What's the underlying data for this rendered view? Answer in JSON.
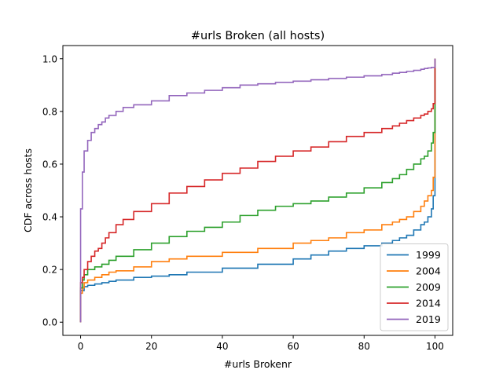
{
  "chart_data": {
    "type": "line",
    "step": true,
    "title": "#urls Broken (all hosts)",
    "xlabel": "#urls Brokenr",
    "ylabel": "CDF across hosts",
    "xlim": [
      -5,
      105
    ],
    "ylim": [
      -0.05,
      1.05
    ],
    "xticks": [
      0,
      20,
      40,
      60,
      80,
      100
    ],
    "yticks": [
      0.0,
      0.2,
      0.4,
      0.6,
      0.8,
      1.0
    ],
    "xtick_labels": [
      "0",
      "20",
      "40",
      "60",
      "80",
      "100"
    ],
    "ytick_labels": [
      "0.0",
      "0.2",
      "0.4",
      "0.6",
      "0.8",
      "1.0"
    ],
    "grid": false,
    "legend": "lower-right",
    "series": [
      {
        "name": "1999",
        "color": "#1f77b4",
        "x": [
          0,
          0,
          1,
          2,
          4,
          6,
          8,
          10,
          15,
          20,
          25,
          30,
          40,
          50,
          60,
          65,
          70,
          75,
          80,
          85,
          88,
          90,
          92,
          94,
          96,
          97,
          98,
          99,
          99.5,
          100,
          100
        ],
        "y": [
          0.0,
          0.12,
          0.135,
          0.14,
          0.145,
          0.15,
          0.155,
          0.16,
          0.17,
          0.175,
          0.18,
          0.19,
          0.205,
          0.22,
          0.24,
          0.255,
          0.27,
          0.28,
          0.29,
          0.3,
          0.31,
          0.32,
          0.33,
          0.35,
          0.37,
          0.38,
          0.4,
          0.43,
          0.48,
          0.5,
          1.0
        ]
      },
      {
        "name": "2004",
        "color": "#ff7f0e",
        "x": [
          0,
          0,
          0.5,
          1,
          2,
          4,
          6,
          8,
          10,
          15,
          20,
          25,
          30,
          40,
          50,
          60,
          65,
          70,
          75,
          80,
          85,
          88,
          90,
          92,
          94,
          96,
          97,
          98,
          99,
          99.5,
          100,
          100
        ],
        "y": [
          0.0,
          0.11,
          0.13,
          0.15,
          0.16,
          0.17,
          0.18,
          0.19,
          0.195,
          0.21,
          0.23,
          0.24,
          0.25,
          0.265,
          0.28,
          0.3,
          0.31,
          0.32,
          0.34,
          0.35,
          0.37,
          0.38,
          0.39,
          0.4,
          0.42,
          0.44,
          0.46,
          0.48,
          0.5,
          0.55,
          0.68,
          1.0
        ]
      },
      {
        "name": "2009",
        "color": "#2ca02c",
        "x": [
          0,
          0,
          0.5,
          1,
          2,
          4,
          6,
          8,
          10,
          15,
          20,
          25,
          30,
          35,
          40,
          45,
          50,
          55,
          60,
          65,
          70,
          75,
          80,
          85,
          88,
          90,
          92,
          94,
          96,
          97,
          98,
          99,
          99.5,
          100,
          100
        ],
        "y": [
          0.0,
          0.13,
          0.16,
          0.18,
          0.2,
          0.21,
          0.22,
          0.235,
          0.25,
          0.275,
          0.3,
          0.325,
          0.345,
          0.36,
          0.38,
          0.405,
          0.425,
          0.44,
          0.45,
          0.46,
          0.475,
          0.49,
          0.51,
          0.53,
          0.545,
          0.56,
          0.58,
          0.6,
          0.62,
          0.63,
          0.65,
          0.68,
          0.72,
          0.82,
          1.0
        ]
      },
      {
        "name": "2014",
        "color": "#d62728",
        "x": [
          0,
          0,
          0.5,
          1,
          2,
          3,
          4,
          5,
          6,
          7,
          8,
          10,
          12,
          15,
          20,
          25,
          30,
          35,
          40,
          45,
          50,
          55,
          60,
          65,
          70,
          75,
          80,
          85,
          88,
          90,
          92,
          94,
          96,
          97,
          98,
          99,
          99.5,
          100,
          100
        ],
        "y": [
          0.0,
          0.15,
          0.17,
          0.2,
          0.23,
          0.25,
          0.27,
          0.28,
          0.3,
          0.32,
          0.34,
          0.37,
          0.39,
          0.42,
          0.45,
          0.49,
          0.515,
          0.54,
          0.565,
          0.585,
          0.61,
          0.63,
          0.65,
          0.665,
          0.685,
          0.705,
          0.72,
          0.735,
          0.745,
          0.755,
          0.765,
          0.775,
          0.785,
          0.79,
          0.8,
          0.81,
          0.83,
          0.96,
          1.0
        ]
      },
      {
        "name": "2019",
        "color": "#9467bd",
        "x": [
          0,
          0,
          0.5,
          1,
          2,
          3,
          4,
          5,
          6,
          7,
          8,
          10,
          12,
          15,
          20,
          25,
          30,
          35,
          40,
          45,
          50,
          55,
          60,
          65,
          70,
          75,
          80,
          85,
          88,
          90,
          92,
          94,
          96,
          97,
          98,
          99,
          100
        ],
        "y": [
          0.0,
          0.43,
          0.57,
          0.65,
          0.69,
          0.72,
          0.735,
          0.75,
          0.76,
          0.775,
          0.785,
          0.8,
          0.815,
          0.825,
          0.84,
          0.86,
          0.87,
          0.88,
          0.89,
          0.9,
          0.905,
          0.91,
          0.915,
          0.92,
          0.925,
          0.93,
          0.935,
          0.94,
          0.945,
          0.948,
          0.952,
          0.956,
          0.96,
          0.963,
          0.965,
          0.967,
          1.0
        ]
      }
    ]
  }
}
